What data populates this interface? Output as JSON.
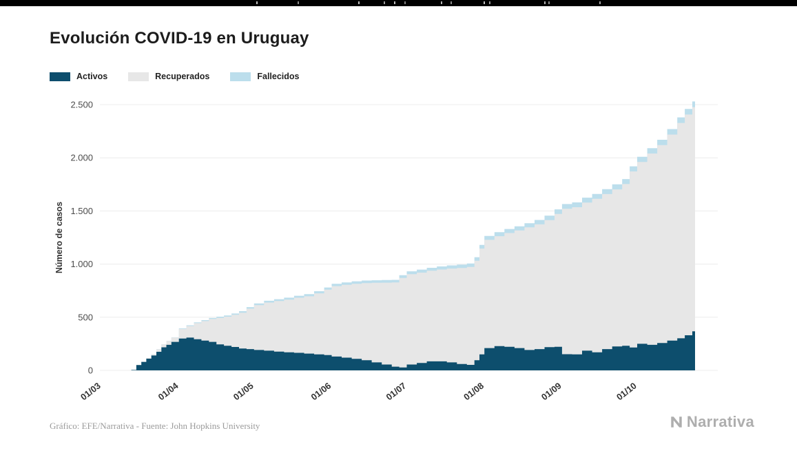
{
  "header": {
    "title": "Evolución COVID-19 en Uruguay"
  },
  "legend": [
    {
      "label": "Activos",
      "color": "#0d4e6d"
    },
    {
      "label": "Recuperados",
      "color": "#e7e7e7"
    },
    {
      "label": "Fallecidos",
      "color": "#bcdeec"
    }
  ],
  "footer": {
    "credit": "Gráfico: EFE/Narrativa - Fuente: John Hopkins University",
    "brand": "Narrativa"
  },
  "chart_data": {
    "type": "area",
    "stacked": true,
    "title": "Evolución COVID-19 en Uruguay",
    "xlabel": "",
    "ylabel": "Número de casos",
    "ylim": [
      0,
      2500
    ],
    "x_domain_days": [
      0,
      236
    ],
    "grid": "horizontal",
    "legend_position": "top-left",
    "y_ticks": [
      {
        "value": 0,
        "label": "0"
      },
      {
        "value": 500,
        "label": "500"
      },
      {
        "value": 1000,
        "label": "1.000"
      },
      {
        "value": 1500,
        "label": "1.500"
      },
      {
        "value": 2000,
        "label": "2.000"
      },
      {
        "value": 2500,
        "label": "2.500"
      }
    ],
    "x_ticks": [
      {
        "day": 0,
        "label": "01/03"
      },
      {
        "day": 31,
        "label": "01/04"
      },
      {
        "day": 61,
        "label": "01/05"
      },
      {
        "day": 92,
        "label": "01/06"
      },
      {
        "day": 122,
        "label": "01/07"
      },
      {
        "day": 153,
        "label": "01/08"
      },
      {
        "day": 184,
        "label": "01/09"
      },
      {
        "day": 214,
        "label": "01/10"
      }
    ],
    "series": [
      {
        "name": "Activos",
        "color": "#0d4e6d"
      },
      {
        "name": "Recuperados",
        "color": "#e7e7e7"
      },
      {
        "name": "Fallecidos",
        "color": "#bcdeec"
      }
    ],
    "point_columns": [
      "day",
      "activos",
      "recuperados",
      "fallecidos"
    ],
    "points": [
      [
        0,
        0,
        0,
        0
      ],
      [
        8,
        0,
        0,
        0
      ],
      [
        12,
        4,
        0,
        0
      ],
      [
        14,
        50,
        2,
        0
      ],
      [
        16,
        79,
        4,
        0
      ],
      [
        18,
        110,
        7,
        0
      ],
      [
        20,
        140,
        11,
        0
      ],
      [
        22,
        175,
        24,
        1
      ],
      [
        24,
        217,
        27,
        1
      ],
      [
        26,
        240,
        37,
        1
      ],
      [
        28,
        268,
        40,
        2
      ],
      [
        31,
        300,
        89,
        6
      ],
      [
        34,
        308,
        109,
        7
      ],
      [
        37,
        293,
        151,
        8
      ],
      [
        40,
        280,
        184,
        9
      ],
      [
        43,
        268,
        215,
        10
      ],
      [
        46,
        245,
        249,
        11
      ],
      [
        49,
        232,
        273,
        12
      ],
      [
        52,
        220,
        303,
        12
      ],
      [
        55,
        205,
        338,
        14
      ],
      [
        58,
        200,
        380,
        15
      ],
      [
        61,
        192,
        422,
        16
      ],
      [
        65,
        185,
        453,
        17
      ],
      [
        69,
        176,
        476,
        18
      ],
      [
        73,
        170,
        495,
        19
      ],
      [
        77,
        165,
        518,
        19
      ],
      [
        81,
        158,
        539,
        20
      ],
      [
        85,
        150,
        575,
        20
      ],
      [
        89,
        144,
        615,
        21
      ],
      [
        92,
        130,
        663,
        22
      ],
      [
        96,
        120,
        685,
        23
      ],
      [
        100,
        108,
        706,
        24
      ],
      [
        104,
        95,
        726,
        24
      ],
      [
        108,
        75,
        749,
        24
      ],
      [
        112,
        55,
        770,
        25
      ],
      [
        116,
        35,
        792,
        25
      ],
      [
        119,
        28,
        841,
        26
      ],
      [
        122,
        55,
        850,
        27
      ],
      [
        126,
        70,
        850,
        28
      ],
      [
        130,
        85,
        852,
        28
      ],
      [
        134,
        85,
        864,
        29
      ],
      [
        138,
        75,
        883,
        30
      ],
      [
        142,
        60,
        904,
        31
      ],
      [
        146,
        52,
        921,
        32
      ],
      [
        149,
        95,
        937,
        33
      ],
      [
        151,
        150,
        996,
        34
      ],
      [
        153,
        210,
        1018,
        37
      ],
      [
        157,
        228,
        1034,
        38
      ],
      [
        161,
        222,
        1070,
        38
      ],
      [
        165,
        210,
        1106,
        39
      ],
      [
        169,
        192,
        1153,
        40
      ],
      [
        173,
        200,
        1174,
        41
      ],
      [
        177,
        218,
        1195,
        42
      ],
      [
        181,
        222,
        1250,
        43
      ],
      [
        184,
        152,
        1368,
        45
      ],
      [
        188,
        150,
        1385,
        45
      ],
      [
        192,
        185,
        1394,
        46
      ],
      [
        196,
        170,
        1444,
        46
      ],
      [
        200,
        200,
        1459,
        46
      ],
      [
        204,
        225,
        1478,
        47
      ],
      [
        208,
        232,
        1521,
        47
      ],
      [
        211,
        215,
        1657,
        48
      ],
      [
        214,
        250,
        1711,
        49
      ],
      [
        218,
        240,
        1800,
        50
      ],
      [
        222,
        258,
        1861,
        51
      ],
      [
        226,
        280,
        1938,
        52
      ],
      [
        230,
        302,
        2026,
        52
      ],
      [
        233,
        330,
        2077,
        53
      ],
      [
        236,
        368,
        2109,
        53
      ]
    ]
  }
}
